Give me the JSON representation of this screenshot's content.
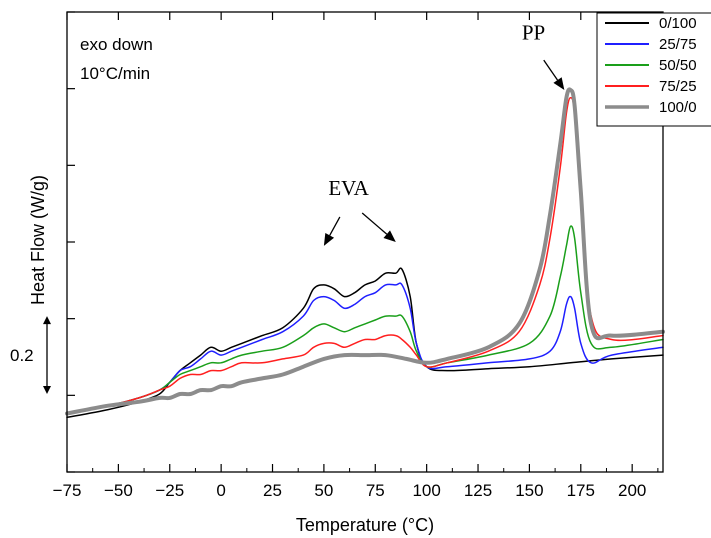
{
  "chart_data": {
    "type": "line",
    "xlabel": "Temperature (°C)",
    "ylabel": "Heat Flow (W/g)",
    "xlim": [
      -75,
      215
    ],
    "ylim": [
      0,
      1.18
    ],
    "xticks": [
      -75,
      -50,
      -25,
      0,
      25,
      50,
      75,
      100,
      125,
      150,
      175,
      200
    ],
    "ytick_count": 6,
    "grid": false,
    "legend_position": "top-right",
    "notes": [
      "exo down",
      "10°C/min"
    ],
    "scale_bar": {
      "label": "0.2",
      "from": 0.2,
      "to": 0.4
    },
    "annotations": [
      {
        "text": "EVA",
        "x": 62,
        "y": 0.71,
        "arrows_to": [
          [
            50,
            0.58
          ],
          [
            85,
            0.59
          ]
        ]
      },
      {
        "text": "PP",
        "x": 152,
        "y": 1.11,
        "arrows_to": [
          [
            167,
            0.98
          ]
        ]
      }
    ],
    "series": [
      {
        "name": "0/100",
        "color": "#000000",
        "width": 1.5,
        "x": [
          -75,
          -55,
          -40,
          -30,
          -25,
          -20,
          -15,
          -10,
          -5,
          0,
          5,
          10,
          20,
          30,
          40,
          45,
          50,
          55,
          60,
          65,
          70,
          75,
          80,
          85,
          88,
          92,
          95,
          100,
          110,
          130,
          150,
          170,
          190,
          215
        ],
        "y": [
          0.14,
          0.16,
          0.18,
          0.2,
          0.23,
          0.26,
          0.28,
          0.3,
          0.32,
          0.31,
          0.32,
          0.33,
          0.35,
          0.37,
          0.42,
          0.47,
          0.48,
          0.47,
          0.45,
          0.46,
          0.48,
          0.49,
          0.51,
          0.51,
          0.52,
          0.45,
          0.33,
          0.27,
          0.26,
          0.265,
          0.27,
          0.28,
          0.29,
          0.3
        ]
      },
      {
        "name": "25/75",
        "color": "#1f1fff",
        "width": 1.5,
        "x": [
          -75,
          -55,
          -40,
          -30,
          -25,
          -20,
          -15,
          -10,
          -5,
          0,
          5,
          10,
          20,
          30,
          40,
          45,
          50,
          55,
          60,
          65,
          70,
          75,
          80,
          85,
          88,
          92,
          95,
          100,
          110,
          130,
          150,
          160,
          165,
          168,
          170,
          172,
          175,
          180,
          190,
          215
        ],
        "y": [
          0.15,
          0.17,
          0.19,
          0.21,
          0.23,
          0.26,
          0.27,
          0.29,
          0.31,
          0.3,
          0.31,
          0.32,
          0.34,
          0.36,
          0.4,
          0.44,
          0.45,
          0.44,
          0.42,
          0.43,
          0.45,
          0.46,
          0.48,
          0.48,
          0.48,
          0.42,
          0.33,
          0.27,
          0.27,
          0.28,
          0.29,
          0.31,
          0.36,
          0.43,
          0.45,
          0.42,
          0.33,
          0.28,
          0.3,
          0.32
        ]
      },
      {
        "name": "50/50",
        "color": "#1a9f1a",
        "width": 1.5,
        "x": [
          -75,
          -55,
          -40,
          -30,
          -25,
          -20,
          -15,
          -10,
          -5,
          0,
          5,
          10,
          20,
          30,
          40,
          45,
          50,
          55,
          60,
          65,
          70,
          75,
          80,
          85,
          88,
          92,
          95,
          100,
          110,
          130,
          150,
          160,
          165,
          168,
          170,
          172,
          175,
          180,
          190,
          215
        ],
        "y": [
          0.15,
          0.17,
          0.19,
          0.21,
          0.23,
          0.25,
          0.26,
          0.27,
          0.28,
          0.28,
          0.29,
          0.3,
          0.31,
          0.32,
          0.35,
          0.37,
          0.38,
          0.37,
          0.36,
          0.37,
          0.38,
          0.39,
          0.4,
          0.4,
          0.4,
          0.36,
          0.31,
          0.27,
          0.28,
          0.3,
          0.33,
          0.4,
          0.5,
          0.58,
          0.63,
          0.6,
          0.46,
          0.33,
          0.32,
          0.34
        ]
      },
      {
        "name": "75/25",
        "color": "#ff1f1f",
        "width": 1.5,
        "x": [
          -75,
          -55,
          -40,
          -30,
          -25,
          -20,
          -15,
          -10,
          -5,
          0,
          5,
          10,
          20,
          30,
          40,
          45,
          50,
          55,
          60,
          65,
          70,
          75,
          80,
          85,
          88,
          92,
          95,
          100,
          110,
          130,
          145,
          155,
          160,
          165,
          168,
          170,
          172,
          175,
          180,
          190,
          215
        ],
        "y": [
          0.15,
          0.17,
          0.19,
          0.21,
          0.22,
          0.24,
          0.25,
          0.25,
          0.26,
          0.26,
          0.27,
          0.28,
          0.28,
          0.29,
          0.3,
          0.32,
          0.33,
          0.33,
          0.32,
          0.33,
          0.34,
          0.34,
          0.35,
          0.35,
          0.34,
          0.32,
          0.3,
          0.27,
          0.28,
          0.31,
          0.36,
          0.48,
          0.6,
          0.78,
          0.92,
          0.96,
          0.92,
          0.7,
          0.4,
          0.34,
          0.35
        ]
      },
      {
        "name": "100/0",
        "color": "#8c8c8c",
        "width": 4,
        "x": [
          -75,
          -55,
          -40,
          -30,
          -25,
          -20,
          -15,
          -10,
          -5,
          0,
          5,
          10,
          20,
          30,
          40,
          50,
          60,
          70,
          80,
          90,
          100,
          110,
          130,
          145,
          155,
          160,
          165,
          168,
          170,
          172,
          175,
          180,
          190,
          215
        ],
        "y": [
          0.15,
          0.17,
          0.18,
          0.19,
          0.19,
          0.2,
          0.2,
          0.21,
          0.21,
          0.22,
          0.22,
          0.23,
          0.24,
          0.25,
          0.27,
          0.29,
          0.3,
          0.3,
          0.3,
          0.29,
          0.28,
          0.29,
          0.32,
          0.38,
          0.52,
          0.66,
          0.84,
          0.96,
          0.98,
          0.94,
          0.72,
          0.38,
          0.35,
          0.36
        ]
      }
    ]
  }
}
